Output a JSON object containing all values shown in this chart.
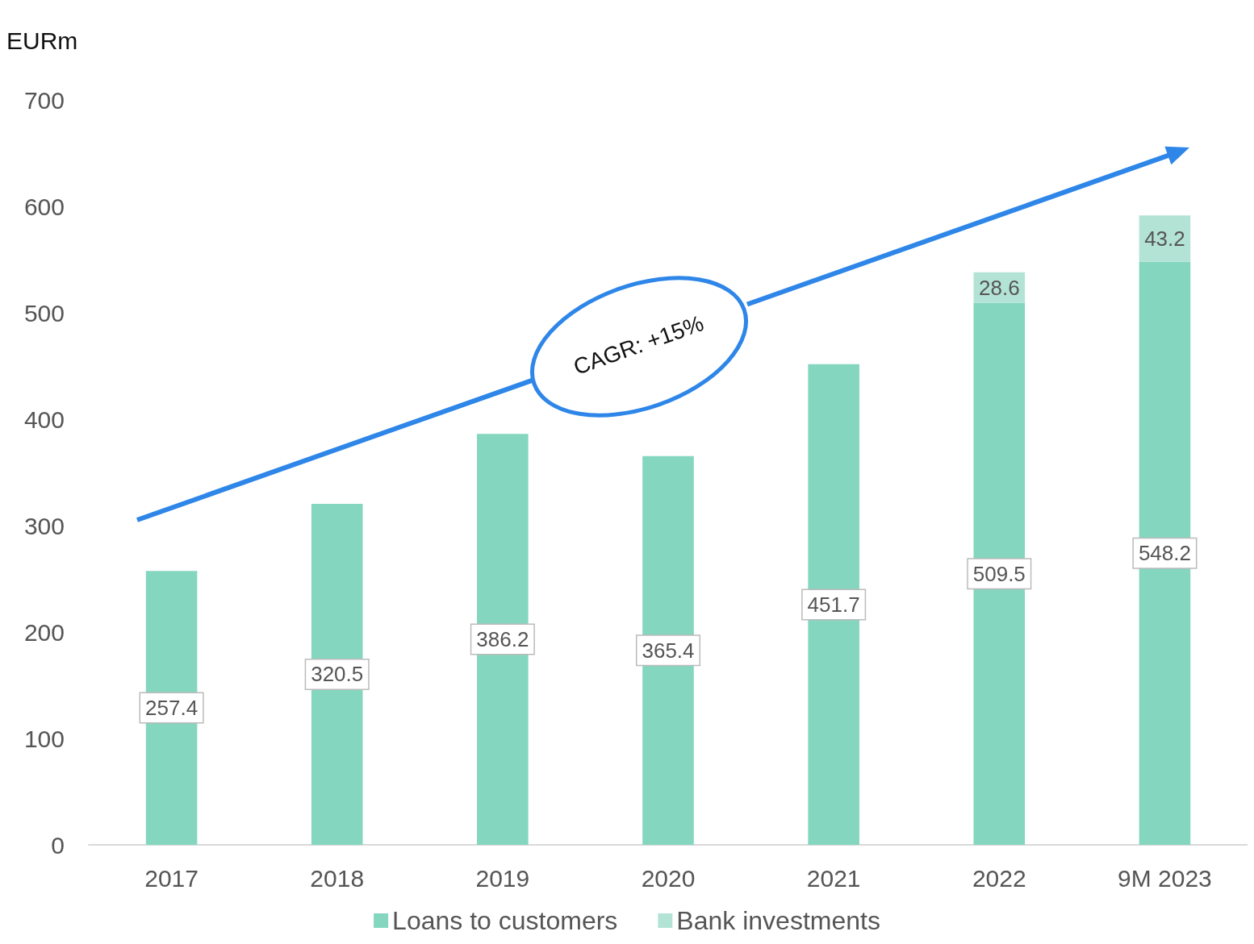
{
  "chart_data": {
    "type": "bar",
    "stacked": true,
    "ylabel": "EURm",
    "categories": [
      "2017",
      "2018",
      "2019",
      "2020",
      "2021",
      "2022",
      "9M 2023"
    ],
    "series": [
      {
        "name": "Loans to customers",
        "color": "#84d6bf",
        "values": [
          257.4,
          320.5,
          386.2,
          365.4,
          451.7,
          509.5,
          548.2
        ]
      },
      {
        "name": "Bank investments",
        "color": "#b3e3d5",
        "values": [
          null,
          null,
          null,
          null,
          null,
          28.6,
          43.2
        ]
      }
    ],
    "ylim": [
      0,
      700
    ],
    "yticks": [
      0,
      100,
      200,
      300,
      400,
      500,
      600,
      700
    ],
    "grid": false,
    "legend": "bottom",
    "data_labels": true,
    "annotations": [
      "CAGR: +15%"
    ]
  }
}
